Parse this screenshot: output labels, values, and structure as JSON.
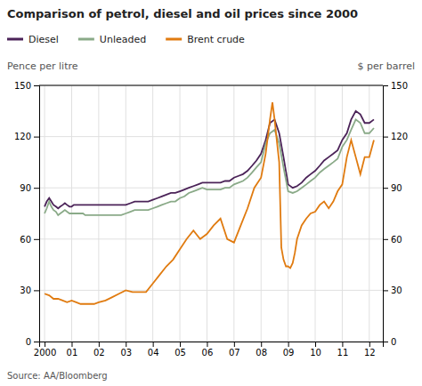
{
  "chart_data": {
    "type": "line",
    "title": "Comparison of petrol, diesel and oil prices since 2000",
    "ylabel": "Pence per litre",
    "y2label": "$ per barrel",
    "source": "Source: AA/Bloomberg",
    "legend": "top-left",
    "grid": true,
    "xlim": [
      1999.8,
      2012.5
    ],
    "xticks": [
      2000,
      {
        "value": 2001,
        "label": "01"
      },
      {
        "value": 2002,
        "label": "02"
      },
      {
        "value": 2003,
        "label": "03"
      },
      {
        "value": 2004,
        "label": "04"
      },
      {
        "value": 2005,
        "label": "05"
      },
      {
        "value": 2006,
        "label": "06"
      },
      {
        "value": 2007,
        "label": "07"
      },
      {
        "value": 2008,
        "label": "08"
      },
      {
        "value": 2009,
        "label": "09"
      },
      {
        "value": 2010,
        "label": "10"
      },
      {
        "value": 2011,
        "label": "11"
      },
      {
        "value": 2012,
        "label": "12"
      }
    ],
    "ylim": [
      0,
      150
    ],
    "yticks": [
      0,
      30,
      60,
      90,
      120,
      150
    ],
    "y2lim": [
      0,
      150
    ],
    "y2ticks": [
      0,
      30,
      60,
      90,
      120,
      150
    ],
    "series": [
      {
        "name": "Diesel",
        "color": "#4b2358",
        "x": [
          2000.0,
          2000.08,
          2000.17,
          2000.25,
          2000.33,
          2000.42,
          2000.5,
          2000.58,
          2000.67,
          2000.75,
          2000.83,
          2000.92,
          2001.0,
          2001.08,
          2001.17,
          2001.25,
          2001.33,
          2001.42,
          2001.5,
          2001.58,
          2001.67,
          2001.75,
          2001.83,
          2001.92,
          2002.0,
          2002.17,
          2002.33,
          2002.5,
          2002.67,
          2002.83,
          2003.0,
          2003.17,
          2003.33,
          2003.5,
          2003.67,
          2003.83,
          2004.0,
          2004.17,
          2004.33,
          2004.5,
          2004.67,
          2004.83,
          2005.0,
          2005.17,
          2005.33,
          2005.5,
          2005.67,
          2005.83,
          2006.0,
          2006.17,
          2006.33,
          2006.5,
          2006.67,
          2006.83,
          2007.0,
          2007.17,
          2007.33,
          2007.5,
          2007.67,
          2007.83,
          2008.0,
          2008.17,
          2008.33,
          2008.5,
          2008.67,
          2008.83,
          2009.0,
          2009.17,
          2009.33,
          2009.5,
          2009.67,
          2009.83,
          2010.0,
          2010.17,
          2010.33,
          2010.5,
          2010.67,
          2010.83,
          2011.0,
          2011.17,
          2011.33,
          2011.5,
          2011.67,
          2011.83,
          2012.0,
          2012.17
        ],
        "values": [
          79,
          82,
          84,
          82,
          80,
          79,
          78,
          79,
          80,
          81,
          80,
          79,
          79,
          80,
          80,
          80,
          80,
          80,
          80,
          80,
          80,
          80,
          80,
          80,
          80,
          80,
          80,
          80,
          80,
          80,
          80,
          81,
          82,
          82,
          82,
          82,
          83,
          84,
          85,
          86,
          87,
          87,
          88,
          89,
          90,
          91,
          92,
          93,
          93,
          93,
          93,
          93,
          94,
          94,
          96,
          97,
          98,
          100,
          103,
          106,
          110,
          118,
          128,
          130,
          122,
          108,
          92,
          90,
          91,
          93,
          96,
          98,
          100,
          103,
          106,
          108,
          110,
          112,
          118,
          122,
          130,
          135,
          133,
          128,
          128,
          130
        ]
      },
      {
        "name": "Unleaded",
        "color": "#8aaa88",
        "x": [
          2000.0,
          2000.08,
          2000.17,
          2000.25,
          2000.33,
          2000.42,
          2000.5,
          2000.58,
          2000.67,
          2000.75,
          2000.83,
          2000.92,
          2001.0,
          2001.08,
          2001.17,
          2001.25,
          2001.33,
          2001.42,
          2001.5,
          2001.58,
          2001.67,
          2001.75,
          2001.83,
          2001.92,
          2002.0,
          2002.17,
          2002.33,
          2002.5,
          2002.67,
          2002.83,
          2003.0,
          2003.17,
          2003.33,
          2003.5,
          2003.67,
          2003.83,
          2004.0,
          2004.17,
          2004.33,
          2004.5,
          2004.67,
          2004.83,
          2005.0,
          2005.17,
          2005.33,
          2005.5,
          2005.67,
          2005.83,
          2006.0,
          2006.17,
          2006.33,
          2006.5,
          2006.67,
          2006.83,
          2007.0,
          2007.17,
          2007.33,
          2007.5,
          2007.67,
          2007.83,
          2008.0,
          2008.17,
          2008.33,
          2008.5,
          2008.67,
          2008.83,
          2009.0,
          2009.17,
          2009.33,
          2009.5,
          2009.67,
          2009.83,
          2010.0,
          2010.17,
          2010.33,
          2010.5,
          2010.67,
          2010.83,
          2011.0,
          2011.17,
          2011.33,
          2011.5,
          2011.67,
          2011.83,
          2012.0,
          2012.17
        ],
        "values": [
          75,
          78,
          82,
          79,
          77,
          76,
          74,
          75,
          76,
          77,
          76,
          75,
          75,
          75,
          75,
          75,
          75,
          75,
          74,
          74,
          74,
          74,
          74,
          74,
          74,
          74,
          74,
          74,
          74,
          74,
          75,
          76,
          77,
          77,
          77,
          77,
          78,
          79,
          80,
          81,
          82,
          82,
          84,
          85,
          87,
          88,
          89,
          90,
          89,
          89,
          89,
          89,
          90,
          90,
          92,
          93,
          94,
          96,
          99,
          102,
          105,
          116,
          122,
          124,
          116,
          102,
          88,
          87,
          88,
          90,
          92,
          94,
          96,
          99,
          101,
          103,
          105,
          107,
          114,
          118,
          124,
          130,
          128,
          122,
          122,
          125
        ]
      },
      {
        "name": "Brent crude",
        "color": "#e07b10",
        "axis": "y2",
        "x": [
          2000.0,
          2000.17,
          2000.33,
          2000.5,
          2000.67,
          2000.83,
          2001.0,
          2001.17,
          2001.33,
          2001.5,
          2001.67,
          2001.83,
          2002.0,
          2002.25,
          2002.5,
          2002.75,
          2003.0,
          2003.25,
          2003.5,
          2003.75,
          2004.0,
          2004.25,
          2004.5,
          2004.75,
          2005.0,
          2005.25,
          2005.5,
          2005.75,
          2006.0,
          2006.25,
          2006.5,
          2006.75,
          2007.0,
          2007.25,
          2007.5,
          2007.75,
          2008.0,
          2008.17,
          2008.33,
          2008.42,
          2008.5,
          2008.58,
          2008.67,
          2008.75,
          2008.83,
          2008.92,
          2009.0,
          2009.08,
          2009.17,
          2009.25,
          2009.33,
          2009.5,
          2009.67,
          2009.83,
          2010.0,
          2010.17,
          2010.33,
          2010.5,
          2010.67,
          2010.83,
          2011.0,
          2011.17,
          2011.33,
          2011.5,
          2011.67,
          2011.83,
          2012.0,
          2012.17
        ],
        "values": [
          28,
          27,
          25,
          25,
          24,
          23,
          24,
          23,
          22,
          22,
          22,
          22,
          23,
          24,
          26,
          28,
          30,
          29,
          29,
          29,
          34,
          39,
          44,
          48,
          54,
          60,
          65,
          60,
          63,
          68,
          72,
          60,
          58,
          68,
          78,
          90,
          96,
          110,
          130,
          140,
          130,
          118,
          105,
          55,
          48,
          44,
          44,
          43,
          46,
          52,
          60,
          68,
          72,
          75,
          76,
          80,
          82,
          78,
          82,
          88,
          92,
          108,
          118,
          108,
          98,
          108,
          108,
          118
        ]
      }
    ]
  }
}
